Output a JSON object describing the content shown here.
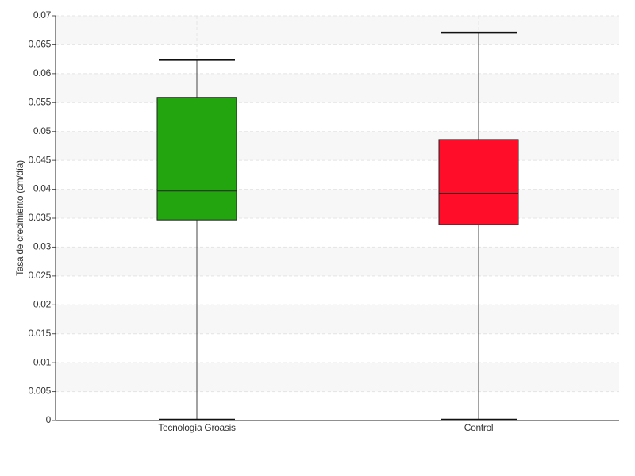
{
  "chart_data": {
    "type": "box",
    "y_label": "Tasa de crecimiento (cm/día)",
    "categories": [
      "Tecnología Groasis",
      "Control"
    ],
    "boxes": [
      {
        "min": 0,
        "q1": 0.0347,
        "median": 0.0397,
        "q3": 0.0559,
        "max": 0.0624,
        "color": "#22a50f"
      },
      {
        "min": 0,
        "q1": 0.0339,
        "median": 0.0393,
        "q3": 0.0486,
        "max": 0.0671,
        "color": "#ff0d29"
      }
    ],
    "ylim": [
      0,
      0.07
    ],
    "yticks": [
      0,
      0.005,
      0.01,
      0.015,
      0.02,
      0.025,
      0.03,
      0.035,
      0.04,
      0.045,
      0.05,
      0.055,
      0.06,
      0.065,
      0.07
    ],
    "grid": true
  }
}
